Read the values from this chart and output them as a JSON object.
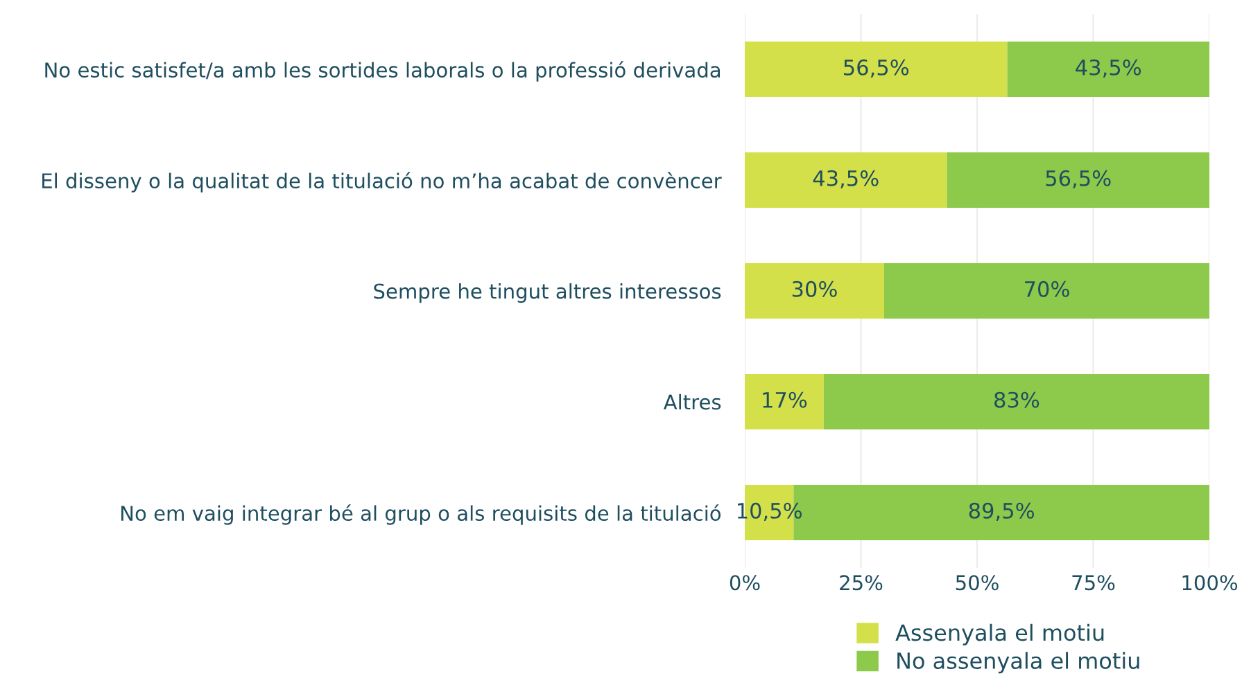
{
  "chart_data": {
    "type": "bar",
    "orientation": "horizontal",
    "stacked": true,
    "categories": [
      "No estic satisfet/a amb les sortides laborals o la professió derivada",
      "El disseny o la qualitat de la titulació no m’ha acabat de convèncer",
      "Sempre he tingut altres interessos",
      "Altres",
      "No em vaig integrar bé al grup o als requisits de la titulació"
    ],
    "series": [
      {
        "name": "Assenyala el motiu",
        "color": "#d4e04a",
        "values": [
          56.5,
          43.5,
          30,
          17,
          10.5
        ],
        "value_labels": [
          "56,5%",
          "43,5%",
          "30%",
          "17%",
          "10,5%"
        ]
      },
      {
        "name": "No assenyala el motiu",
        "color": "#8dc94b",
        "values": [
          43.5,
          56.5,
          70,
          83,
          89.5
        ],
        "value_labels": [
          "43,5%",
          "56,5%",
          "70%",
          "83%",
          "89,5%"
        ]
      }
    ],
    "xlim": [
      0,
      100
    ],
    "xticks": [
      {
        "value": 0,
        "label": "0%"
      },
      {
        "value": 25,
        "label": "25%"
      },
      {
        "value": 50,
        "label": "50%"
      },
      {
        "value": 75,
        "label": "75%"
      },
      {
        "value": 100,
        "label": "100%"
      }
    ],
    "grid": "x",
    "legend": "bottom"
  }
}
